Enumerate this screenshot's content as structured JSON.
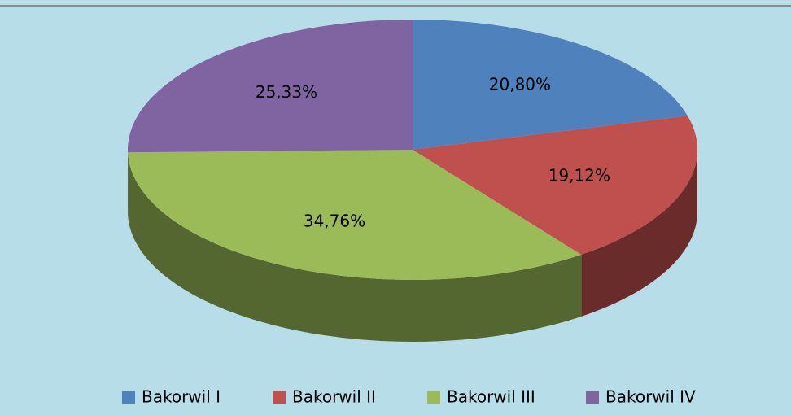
{
  "chart_data": {
    "type": "pie",
    "categories": [
      "Bakorwil I",
      "Bakorwil II",
      "Bakorwil III",
      "Bakorwil IV"
    ],
    "values": [
      20.8,
      19.12,
      34.76,
      25.33
    ],
    "value_labels": [
      "20,80%",
      "19,12%",
      "34,76%",
      "25,33%"
    ],
    "colors": [
      "#4f81bd",
      "#c0504d",
      "#9bbb59",
      "#8064a2"
    ],
    "legend": "bottom"
  }
}
